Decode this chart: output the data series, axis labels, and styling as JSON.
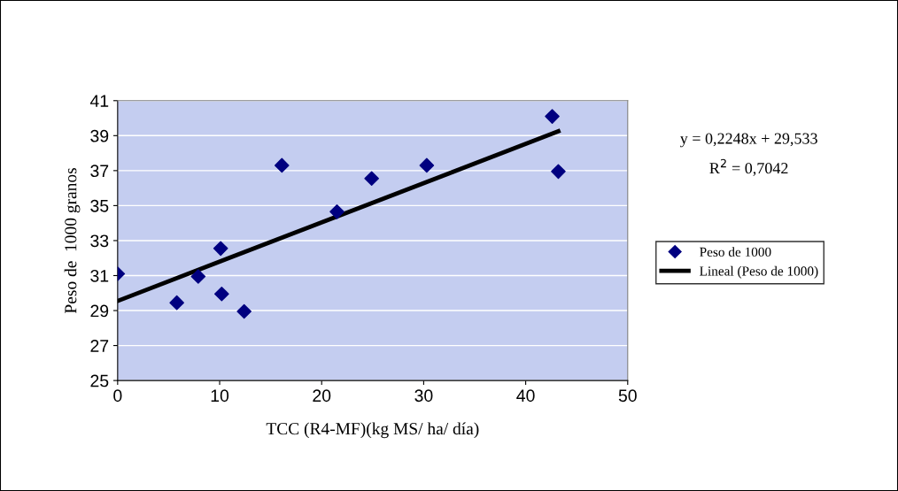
{
  "chart_data": {
    "type": "scatter",
    "xlabel": "TCC (R4-MF)(kg MS/ ha/ día)",
    "ylabel": "Peso de  1000 granos",
    "x": [
      0,
      5.8,
      7.9,
      10.1,
      10.2,
      12.4,
      16.1,
      21.5,
      24.9,
      30.3,
      42.6,
      43.2
    ],
    "series": [
      {
        "name": "Peso de 1000",
        "color": "#000080",
        "marker": "diamond",
        "values": [
          31.1,
          29.45,
          30.95,
          32.55,
          29.95,
          28.95,
          37.3,
          34.65,
          36.55,
          37.3,
          40.1,
          36.95
        ]
      },
      {
        "name": "Lineal (Peso de 1000)",
        "type": "line",
        "color": "#000000",
        "line_style": "solid",
        "x": [
          0,
          43.2
        ],
        "values": [
          29.55,
          39.25
        ]
      }
    ],
    "xlim": [
      0,
      50
    ],
    "xticks": [
      0,
      10,
      20,
      30,
      40,
      50
    ],
    "ylim": [
      25,
      41
    ],
    "yticks": [
      25,
      27,
      29,
      31,
      33,
      35,
      37,
      39,
      41
    ],
    "grid": "y",
    "legend": "right",
    "annotations": [
      "y = 0,2248x + 29,533",
      "R$^{2}$ = 0,7042"
    ]
  }
}
